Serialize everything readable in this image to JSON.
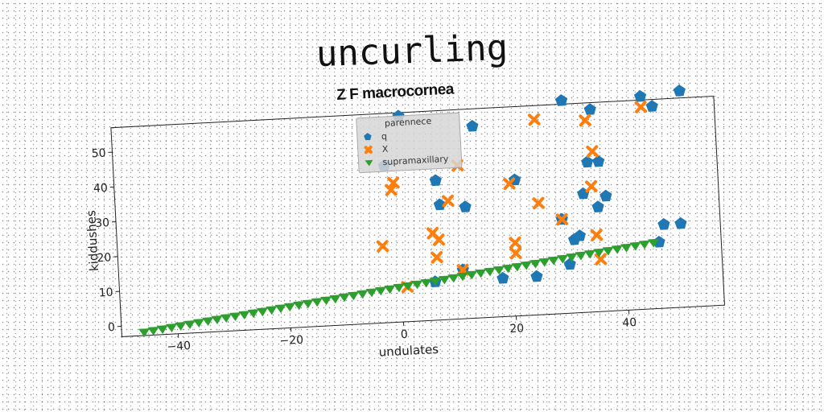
{
  "page": {
    "main_title": "uncurling"
  },
  "chart_data": {
    "type": "scatter",
    "title": "Z F macrocornea",
    "xlabel": "undulates",
    "ylabel": "kiddushes",
    "xlim": [
      -50,
      57
    ],
    "ylim": [
      -3,
      57
    ],
    "xticks": [
      -40,
      -20,
      0,
      20,
      40
    ],
    "yticks": [
      0,
      10,
      20,
      30,
      40,
      50
    ],
    "grid": false,
    "legend": {
      "title": "parennece",
      "placement": "top-center"
    },
    "colors": {
      "q": "#1f77b4",
      "X": "#ff7f0e",
      "supramaxillary": "#2ca02c"
    },
    "series": [
      {
        "name": "q",
        "marker": "pentagon",
        "points": [
          [
            -2,
            42
          ],
          [
            1,
            56
          ],
          [
            6,
            8
          ],
          [
            7,
            37
          ],
          [
            7.5,
            30
          ],
          [
            11,
            11
          ],
          [
            12,
            29
          ],
          [
            14,
            52
          ],
          [
            18,
            8
          ],
          [
            21,
            36
          ],
          [
            24,
            8
          ],
          [
            29,
            24
          ],
          [
            30,
            58
          ],
          [
            30,
            11
          ],
          [
            31,
            18
          ],
          [
            32,
            19
          ],
          [
            33,
            31
          ],
          [
            34,
            40
          ],
          [
            35,
            55
          ],
          [
            35.5,
            27
          ],
          [
            36,
            40
          ],
          [
            37,
            30
          ],
          [
            44,
            58
          ],
          [
            46,
            16
          ],
          [
            46,
            55
          ],
          [
            47,
            21
          ],
          [
            50,
            21
          ],
          [
            51,
            59
          ]
        ]
      },
      {
        "name": "X",
        "marker": "x",
        "points": [
          [
            -3,
            19
          ],
          [
            -1,
            35
          ],
          [
            -0.5,
            37
          ],
          [
            1,
            7
          ],
          [
            6,
            22
          ],
          [
            6.5,
            15
          ],
          [
            7,
            20
          ],
          [
            9,
            31
          ],
          [
            11,
            41
          ],
          [
            11,
            11
          ],
          [
            20,
            35
          ],
          [
            20.5,
            18
          ],
          [
            20.5,
            15
          ],
          [
            25,
            53
          ],
          [
            25,
            29
          ],
          [
            29,
            24
          ],
          [
            34,
            52
          ],
          [
            34.5,
            33
          ],
          [
            35,
            43
          ],
          [
            35,
            19
          ],
          [
            35.5,
            12
          ],
          [
            44,
            55
          ]
        ]
      },
      {
        "name": "supramaxillary",
        "marker": "triangle-down",
        "line": {
          "x_start": -46,
          "x_end": 45,
          "y_start": -2,
          "y_end": 16,
          "count": 57
        }
      }
    ]
  }
}
